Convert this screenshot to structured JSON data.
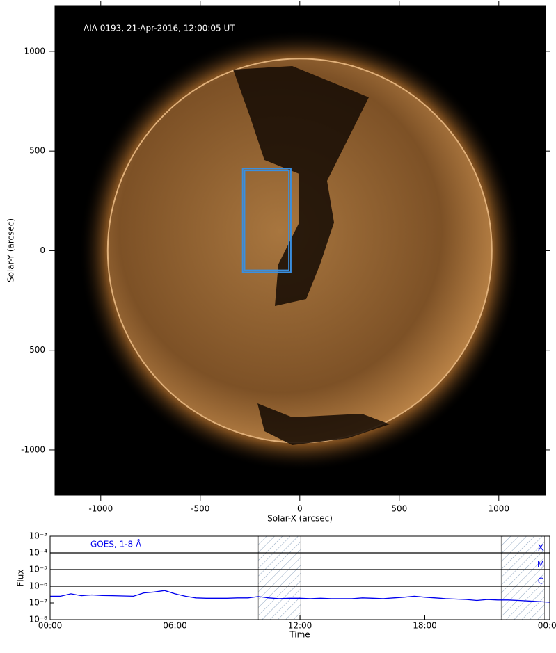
{
  "chart_data": [
    {
      "type": "image",
      "title": "AIA 0193, 21-Apr-2016, 12:00:05 UT",
      "xlabel": "Solar-X (arcsec)",
      "ylabel": "Solar-Y (arcsec)",
      "xlim": [
        -1230,
        1235
      ],
      "ylim": [
        -1227,
        1230
      ],
      "xticks": [
        -1000,
        -500,
        0,
        500,
        1000
      ],
      "yticks": [
        -1000,
        -500,
        0,
        500,
        1000
      ],
      "disk_radius": 965,
      "box": {
        "x": [
          -287,
          -45
        ],
        "y": [
          -108,
          412
        ],
        "color": "#3a8fe0"
      }
    },
    {
      "type": "line",
      "label": "GOES, 1-8 Å",
      "xlabel": "Time",
      "ylabel": "Flux",
      "xlim": [
        0,
        24
      ],
      "xticks": [
        {
          "value": 0,
          "label": "00:00"
        },
        {
          "value": 6,
          "label": "06:00"
        },
        {
          "value": 12,
          "label": "12:00"
        },
        {
          "value": 18,
          "label": "18:00"
        },
        {
          "value": 24,
          "label": "00:00"
        }
      ],
      "ylim": [
        1e-08,
        0.001
      ],
      "log_scale": true,
      "yticks": [
        {
          "value": 1e-08,
          "label": "10⁻⁸"
        },
        {
          "value": 1e-07,
          "label": "10⁻⁷"
        },
        {
          "value": 1e-06,
          "label": "10⁻⁶"
        },
        {
          "value": 1e-05,
          "label": "10⁻⁵"
        },
        {
          "value": 0.0001,
          "label": "10⁻⁴"
        },
        {
          "value": 0.001,
          "label": "10⁻³"
        }
      ],
      "thresholds": [
        {
          "value": 0.0001,
          "label": "X"
        },
        {
          "value": 1e-05,
          "label": "M"
        },
        {
          "value": 1e-06,
          "label": "C"
        }
      ],
      "shaded": [
        [
          10,
          12.04
        ],
        [
          21.67,
          23.75
        ]
      ],
      "x": [
        0,
        0.5,
        1,
        1.5,
        2,
        2.5,
        3,
        3.5,
        4,
        4.5,
        5,
        5.5,
        6,
        6.5,
        7,
        7.5,
        8,
        8.5,
        9,
        9.5,
        10,
        10.5,
        11,
        11.5,
        12,
        12.5,
        13,
        13.5,
        14,
        14.5,
        15,
        15.5,
        16,
        16.5,
        17,
        17.5,
        18,
        18.5,
        19,
        19.5,
        20,
        20.5,
        21,
        21.5,
        22,
        22.5,
        23,
        23.5,
        24
      ],
      "series": [
        {
          "name": "GOES, 1-8 Å",
          "color": "#0000ee",
          "values": [
            2.5e-07,
            2.5e-07,
            3.5e-07,
            2.7e-07,
            3e-07,
            2.8e-07,
            2.7e-07,
            2.6e-07,
            2.5e-07,
            4e-07,
            4.5e-07,
            5.5e-07,
            3.5e-07,
            2.5e-07,
            2e-07,
            1.9e-07,
            1.9e-07,
            1.9e-07,
            2e-07,
            2e-07,
            2.4e-07,
            2e-07,
            1.8e-07,
            1.9e-07,
            1.9e-07,
            1.8e-07,
            1.9e-07,
            1.8e-07,
            1.8e-07,
            1.8e-07,
            2e-07,
            1.9e-07,
            1.8e-07,
            2e-07,
            2.2e-07,
            2.5e-07,
            2.2e-07,
            2e-07,
            1.8e-07,
            1.7e-07,
            1.6e-07,
            1.4e-07,
            1.6e-07,
            1.5e-07,
            1.5e-07,
            1.4e-07,
            1.3e-07,
            1.2e-07,
            1.1e-07
          ]
        }
      ]
    }
  ]
}
